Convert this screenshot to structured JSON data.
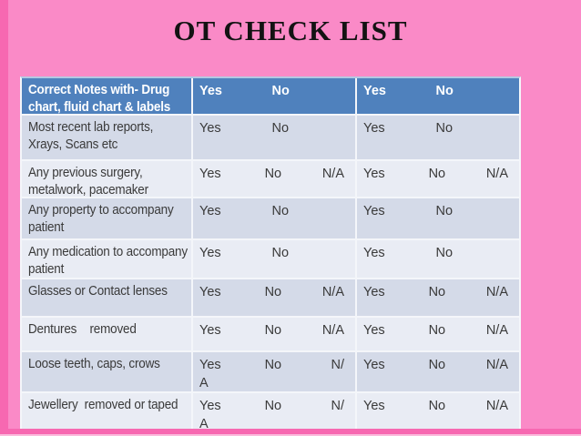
{
  "slide": {
    "title": "OT CHECK LIST"
  },
  "colors": {
    "background_pink": "#FA8AC7",
    "edge_pink": "#F768B1",
    "header_blue": "#4F81BD",
    "band_dark": "#D4DAE8",
    "band_light": "#E9ECF4",
    "header_text": "#FFFFFF",
    "body_text": "#3A3A3A"
  },
  "table": {
    "header": {
      "label": "Correct Notes with- Drug chart, fluid chart & labels",
      "c1": [
        "Yes",
        "No"
      ],
      "c2": [
        "Yes",
        "No"
      ]
    },
    "rows": [
      {
        "label": "Most recent lab reports, Xrays, Scans etc",
        "c1": [
          "Yes",
          "No"
        ],
        "c2": [
          "Yes",
          "No"
        ]
      },
      {
        "label": "Any previous surgery, metalwork, pacemaker",
        "c1": [
          "Yes",
          "No",
          "N/A"
        ],
        "c2": [
          "Yes",
          "No",
          "N/A"
        ]
      },
      {
        "label": "Any property to accompany patient",
        "c1": [
          "Yes",
          "No"
        ],
        "c2": [
          "Yes",
          "No"
        ]
      },
      {
        "label": "Any medication to accompany patient",
        "c1": [
          "Yes",
          "No"
        ],
        "c2": [
          "Yes",
          "No"
        ]
      },
      {
        "label": "Glasses or Contact lenses",
        "c1": [
          "Yes",
          "No",
          "N/A"
        ],
        "c2": [
          "Yes",
          "No",
          "N/A"
        ]
      },
      {
        "label": "Dentures    removed",
        "c1": [
          "Yes",
          "No",
          "N/A"
        ],
        "c2": [
          "Yes",
          "No",
          "N/A"
        ]
      },
      {
        "label": "Loose teeth, caps, crows",
        "c1": [
          "Yes",
          "No",
          "N/"
        ],
        "c1_overflow": "A",
        "c2": [
          "Yes",
          "No",
          "N/A"
        ]
      },
      {
        "label": "Jewellery  removed or taped",
        "c1": [
          "Yes",
          "No",
          "N/"
        ],
        "c1_overflow": "A",
        "c2": [
          "Yes",
          "No",
          "N/A"
        ]
      }
    ]
  }
}
